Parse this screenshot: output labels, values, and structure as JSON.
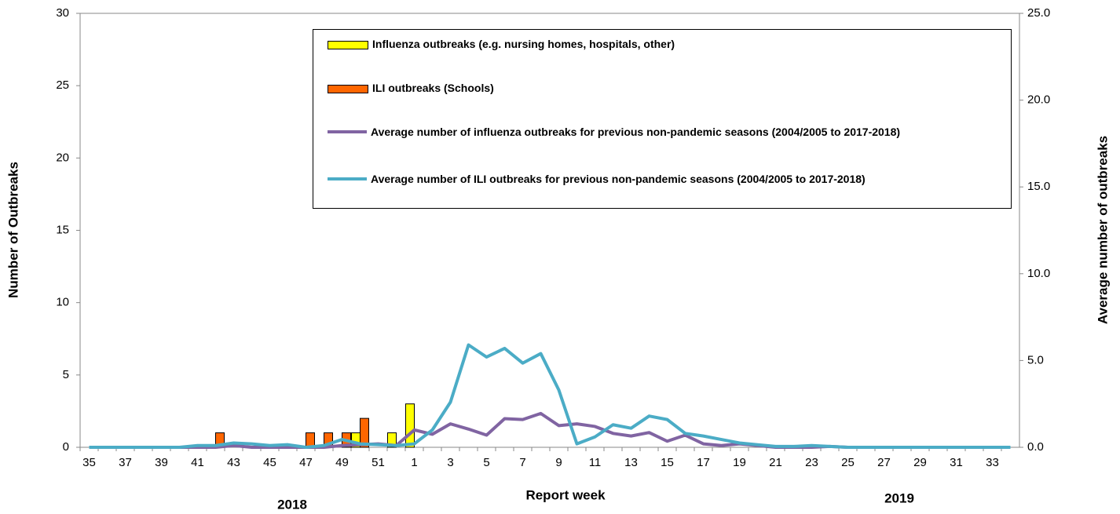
{
  "chart_data": {
    "type": "bar",
    "categories": [
      "35",
      null,
      "37",
      null,
      "39",
      null,
      "41",
      null,
      "43",
      null,
      "45",
      null,
      "47",
      null,
      "49",
      null,
      "51",
      null,
      "1",
      null,
      "3",
      null,
      "5",
      null,
      "7",
      null,
      "9",
      null,
      "11",
      null,
      "13",
      null,
      "15",
      null,
      "17",
      null,
      "19",
      null,
      "21",
      null,
      "23",
      null,
      "25",
      null,
      "27",
      null,
      "29",
      null,
      "31",
      null,
      "33",
      null
    ],
    "x_label": "Report week",
    "y_label": "Number of Outbreaks",
    "y2_label": "Average number of outbreaks",
    "annotations": [
      "2018",
      "2019"
    ],
    "ylim": [
      0,
      30
    ],
    "yticks": [
      0,
      5,
      10,
      15,
      20,
      25,
      30
    ],
    "y2lim": [
      0,
      25
    ],
    "y2ticks": [
      {
        "value": 0,
        "label": "0.0"
      },
      {
        "value": 5,
        "label": "5.0"
      },
      {
        "value": 10,
        "label": "10.0"
      },
      {
        "value": 15,
        "label": "15.0"
      },
      {
        "value": 20,
        "label": "20.0"
      },
      {
        "value": 25,
        "label": "25.0"
      }
    ],
    "series": [
      {
        "name": "Influenza outbreaks (e.g. nursing homes, hospitals, other)",
        "type": "bar",
        "color": "#ffff00",
        "values": [
          0,
          0,
          0,
          0,
          0,
          0,
          0,
          0,
          0,
          0,
          0,
          0,
          0,
          0,
          0,
          1,
          0,
          1,
          3,
          0,
          0,
          0,
          0,
          0,
          0,
          0,
          0,
          0,
          0,
          0,
          0,
          0,
          0,
          0,
          0,
          0,
          0,
          0,
          0,
          0,
          0,
          0,
          0,
          0,
          0,
          0,
          0,
          0,
          0,
          0,
          0,
          0
        ]
      },
      {
        "name": "ILI outbreaks (Schools)",
        "type": "bar",
        "color": "#ff6600",
        "values": [
          0,
          0,
          0,
          0,
          0,
          0,
          0,
          1,
          0,
          0,
          0,
          0,
          1,
          1,
          1,
          2,
          0,
          0,
          0,
          0,
          0,
          0,
          0,
          0,
          0,
          0,
          0,
          0,
          0,
          0,
          0,
          0,
          0,
          0,
          0,
          0,
          0,
          0,
          0,
          0,
          0,
          0,
          0,
          0,
          0,
          0,
          0,
          0,
          0,
          0,
          0,
          0
        ]
      },
      {
        "name": "Average number of influenza outbreaks for previous non-pandemic seasons (2004/2005 to 2017-2018)",
        "type": "line",
        "axis": "y2",
        "color": "#8064a2",
        "values": [
          0,
          0,
          0,
          0,
          0,
          0,
          0,
          0,
          0.1,
          0,
          0,
          0,
          0,
          0,
          0.1,
          0.15,
          0.2,
          0.1,
          1.0,
          0.75,
          1.35,
          1.05,
          0.7,
          1.65,
          1.6,
          1.95,
          1.25,
          1.35,
          1.2,
          0.8,
          0.65,
          0.85,
          0.35,
          0.7,
          0.2,
          0.1,
          0.2,
          0.1,
          0,
          0,
          0,
          0.05,
          0,
          0,
          0,
          0,
          0,
          0,
          0,
          0,
          0,
          0
        ]
      },
      {
        "name": "Average number of ILI outbreaks for previous non-pandemic seasons (2004/2005 to 2017-2018)",
        "type": "line",
        "axis": "y2",
        "color": "#4bacc6",
        "values": [
          0,
          0,
          0,
          0,
          0,
          0,
          0.1,
          0.1,
          0.25,
          0.2,
          0.1,
          0.15,
          0,
          0.1,
          0.45,
          0.2,
          0.15,
          0.1,
          0.2,
          1.0,
          2.6,
          5.9,
          5.2,
          5.7,
          4.85,
          5.4,
          3.3,
          0.2,
          0.6,
          1.3,
          1.1,
          1.8,
          1.6,
          0.8,
          0.65,
          0.45,
          0.25,
          0.15,
          0.05,
          0.05,
          0.1,
          0.05,
          0,
          0,
          0,
          0,
          0,
          0,
          0,
          0,
          0,
          0
        ]
      }
    ]
  }
}
